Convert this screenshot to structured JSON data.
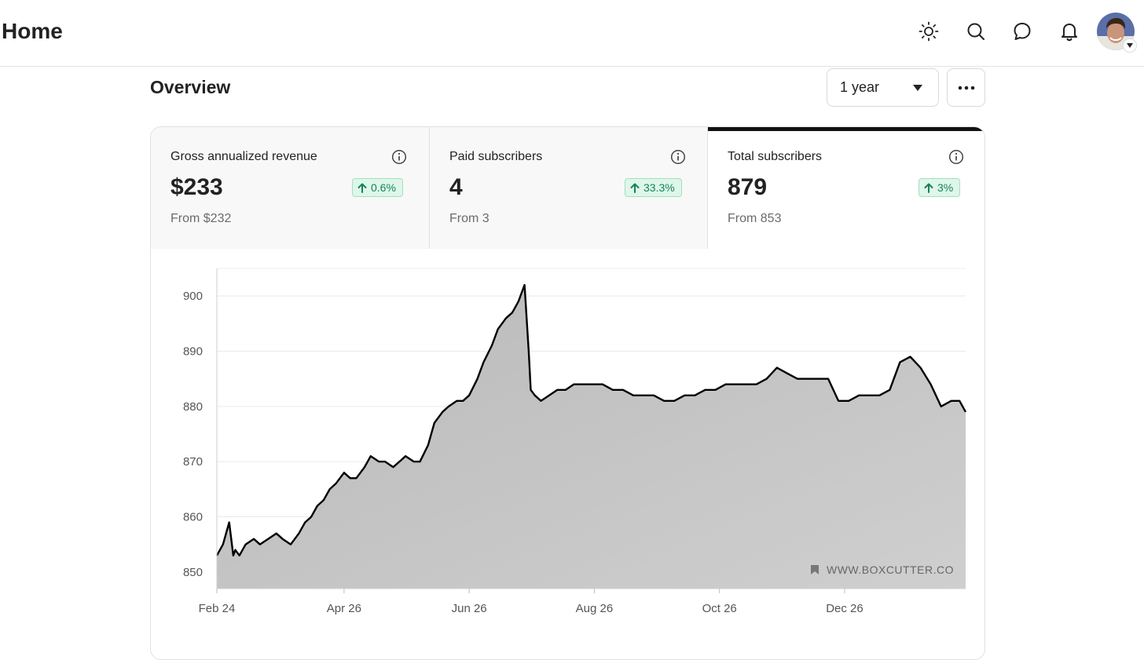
{
  "header": {
    "title": "Home",
    "icons": [
      "sun-icon",
      "search-icon",
      "chat-icon",
      "bell-icon"
    ]
  },
  "overview": {
    "title": "Overview",
    "range": "1 year"
  },
  "stats": [
    {
      "label": "Gross annualized revenue",
      "value": "$233",
      "change": "0.6%",
      "from": "From $232",
      "active": false
    },
    {
      "label": "Paid subscribers",
      "value": "4",
      "change": "33.3%",
      "from": "From 3",
      "active": false
    },
    {
      "label": "Total subscribers",
      "value": "879",
      "change": "3%",
      "from": "From 853",
      "active": true
    }
  ],
  "colors": {
    "badge_bg": "#dff6ea",
    "badge_text": "#12845a",
    "line": "#000000",
    "area": "#c4c4c4"
  },
  "chart_data": {
    "type": "area",
    "title": "",
    "xlabel": "",
    "ylabel": "",
    "ylim": [
      847,
      905
    ],
    "y_ticks": [
      850,
      860,
      870,
      880,
      890,
      900
    ],
    "x_tick_labels": [
      "Feb 24",
      "Apr 26",
      "Jun 26",
      "Aug 26",
      "Oct 26",
      "Dec 26"
    ],
    "x_range": [
      "2024-02-24",
      "2025-02-23"
    ],
    "grid": true,
    "watermark": "WWW.BOXCUTTER.CO",
    "series": [
      {
        "x": [
          "2024-02-24",
          "2024-02-27",
          "2024-03-01",
          "2024-03-03",
          "2024-03-04",
          "2024-03-06",
          "2024-03-09",
          "2024-03-13",
          "2024-03-16",
          "2024-03-20",
          "2024-03-24",
          "2024-03-27",
          "2024-03-31",
          "2024-04-04",
          "2024-04-07",
          "2024-04-10",
          "2024-04-13",
          "2024-04-16",
          "2024-04-19",
          "2024-04-22",
          "2024-04-26",
          "2024-04-29",
          "2024-05-02",
          "2024-05-06",
          "2024-05-09",
          "2024-05-13",
          "2024-05-16",
          "2024-05-20",
          "2024-05-23",
          "2024-05-26",
          "2024-05-30",
          "2024-06-02",
          "2024-06-06",
          "2024-06-09",
          "2024-06-13",
          "2024-06-16",
          "2024-06-20",
          "2024-06-23",
          "2024-06-26",
          "2024-06-30",
          "2024-07-03",
          "2024-07-07",
          "2024-07-10",
          "2024-07-14",
          "2024-07-17",
          "2024-07-20",
          "2024-07-23",
          "2024-07-25",
          "2024-07-26",
          "2024-07-28",
          "2024-07-31",
          "2024-08-04",
          "2024-08-08",
          "2024-08-12",
          "2024-08-16",
          "2024-08-20",
          "2024-08-25",
          "2024-08-30",
          "2024-09-04",
          "2024-09-09",
          "2024-09-14",
          "2024-09-19",
          "2024-09-24",
          "2024-09-29",
          "2024-10-04",
          "2024-10-09",
          "2024-10-14",
          "2024-10-19",
          "2024-10-24",
          "2024-10-29",
          "2024-11-03",
          "2024-11-08",
          "2024-11-13",
          "2024-11-18",
          "2024-11-23",
          "2024-11-28",
          "2024-12-03",
          "2024-12-08",
          "2024-12-13",
          "2024-12-18",
          "2024-12-23",
          "2024-12-28",
          "2025-01-02",
          "2025-01-07",
          "2025-01-12",
          "2025-01-17",
          "2025-01-22",
          "2025-01-27",
          "2025-02-01",
          "2025-02-06",
          "2025-02-11",
          "2025-02-16",
          "2025-02-20",
          "2025-02-23"
        ],
        "values": [
          853,
          855,
          859,
          853,
          854,
          853,
          855,
          856,
          855,
          856,
          857,
          856,
          855,
          857,
          859,
          860,
          862,
          863,
          865,
          866,
          868,
          867,
          867,
          869,
          871,
          870,
          870,
          869,
          870,
          871,
          870,
          870,
          873,
          877,
          879,
          880,
          881,
          881,
          882,
          885,
          888,
          891,
          894,
          896,
          897,
          899,
          902,
          890,
          883,
          882,
          881,
          882,
          883,
          883,
          884,
          884,
          884,
          884,
          883,
          883,
          882,
          882,
          882,
          881,
          881,
          882,
          882,
          883,
          883,
          884,
          884,
          884,
          884,
          885,
          887,
          886,
          885,
          885,
          885,
          885,
          881,
          881,
          882,
          882,
          882,
          883,
          888,
          889,
          887,
          884,
          880,
          881,
          881,
          879
        ]
      }
    ]
  }
}
